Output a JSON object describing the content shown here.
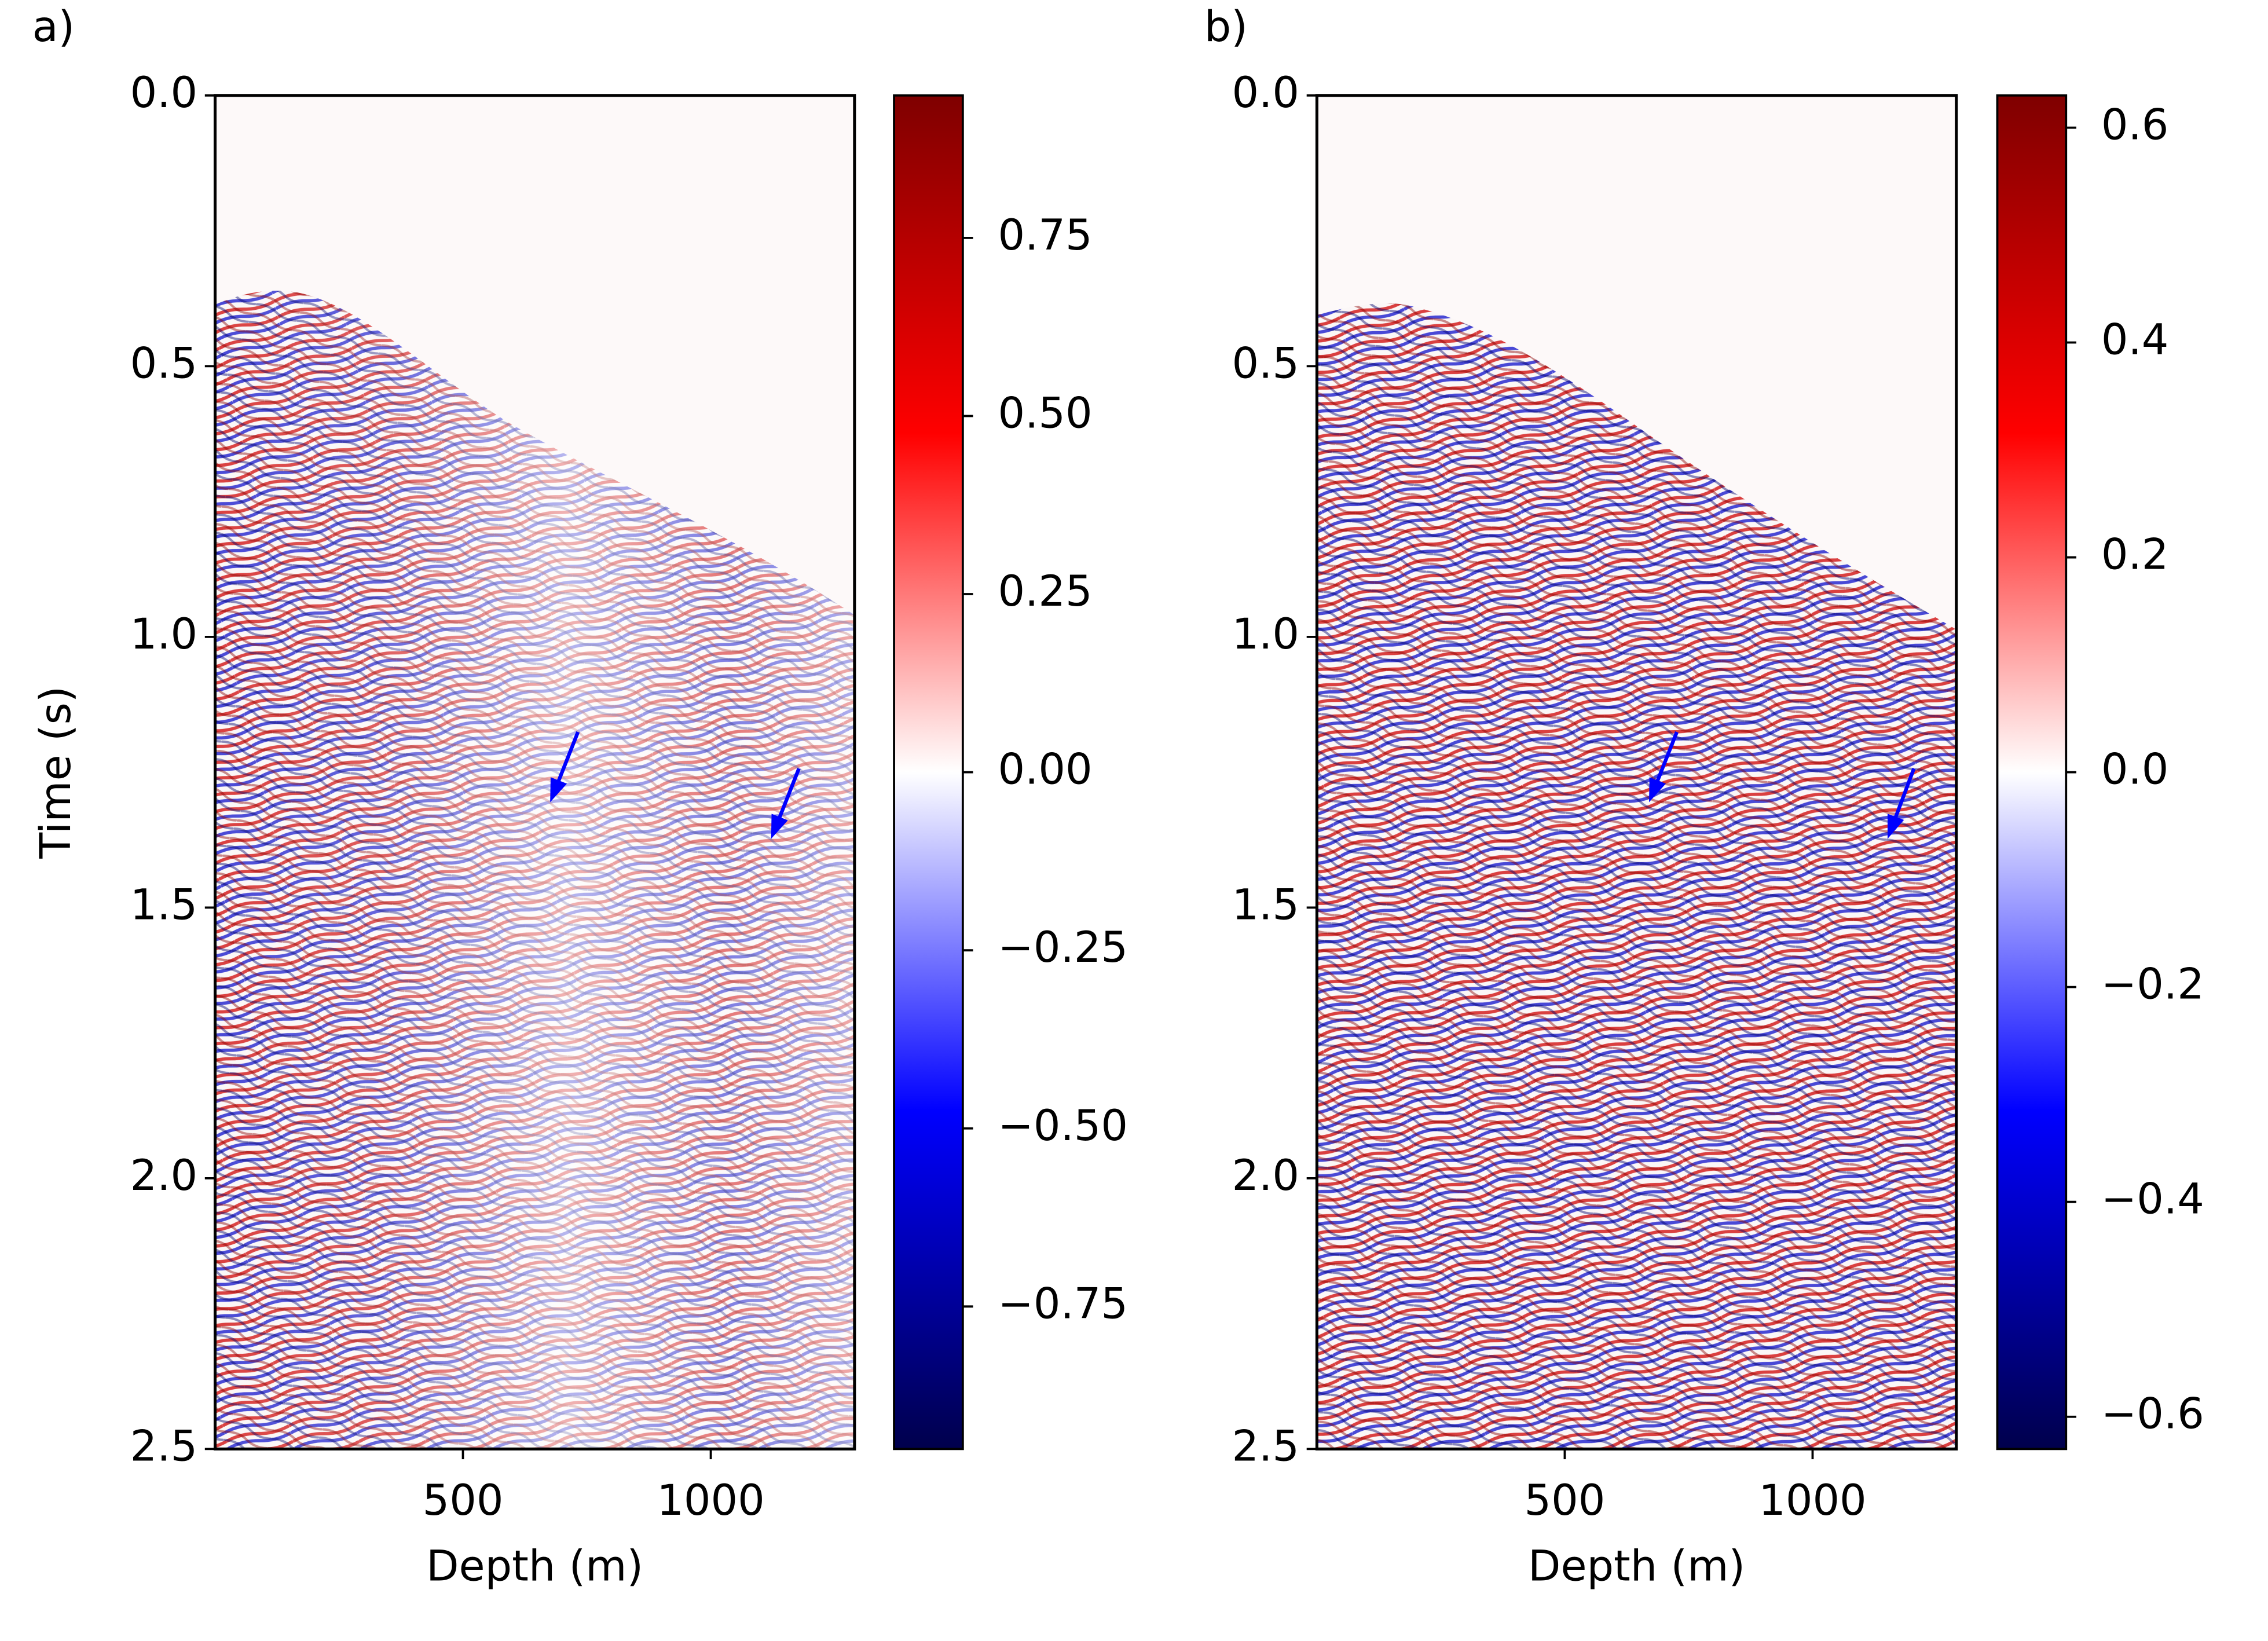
{
  "chart_data": [
    {
      "type": "image",
      "title": "a)",
      "x_label": "Depth (m)",
      "y_label": "Time (s)",
      "xlim": [
        0,
        1290
      ],
      "xticks": [
        500,
        1000
      ],
      "ylim": [
        2.5,
        0.0
      ],
      "yticks": [
        {
          "value": 0.0,
          "label": "0.0"
        },
        0.5,
        {
          "value": 1.0,
          "label": "1.0"
        },
        1.5,
        {
          "value": 2.0,
          "label": "2.0"
        },
        2.5
      ],
      "colormap": [
        "#00004c",
        "#0000ff",
        "#ffffff",
        "#ff0000",
        "#7f0000"
      ],
      "colorbar": {
        "lim": [
          -0.95,
          0.95
        ],
        "ticks": [
          {
            "value": 0.75,
            "label": "0.75"
          },
          {
            "value": 0.5,
            "label": "0.50"
          },
          0.25,
          {
            "value": 0,
            "label": "0.00"
          },
          {
            "value": -0.25,
            "label": "−0.25"
          },
          {
            "value": -0.5,
            "label": "−0.50"
          },
          {
            "value": -0.75,
            "label": "−0.75"
          }
        ]
      }
    },
    {
      "type": "image",
      "title": "b)",
      "x_label": "Depth (m)",
      "xlim": [
        0,
        1290
      ],
      "xticks": [
        500,
        1000
      ],
      "ylim": [
        2.5,
        0.0
      ],
      "yticks": [
        {
          "value": 0.0,
          "label": "0.0"
        },
        0.5,
        {
          "value": 1.0,
          "label": "1.0"
        },
        1.5,
        {
          "value": 2.0,
          "label": "2.0"
        },
        2.5
      ],
      "colormap": [
        "#00004c",
        "#0000ff",
        "#ffffff",
        "#ff0000",
        "#7f0000"
      ],
      "colorbar": {
        "lim": [
          -0.63,
          0.63
        ],
        "ticks": [
          0.6,
          0.4,
          0.2,
          {
            "value": 0,
            "label": "0.0"
          },
          {
            "value": -0.2,
            "label": "−0.2"
          },
          {
            "value": -0.4,
            "label": "−0.4"
          },
          {
            "value": -0.6,
            "label": "−0.6"
          }
        ]
      }
    }
  ]
}
